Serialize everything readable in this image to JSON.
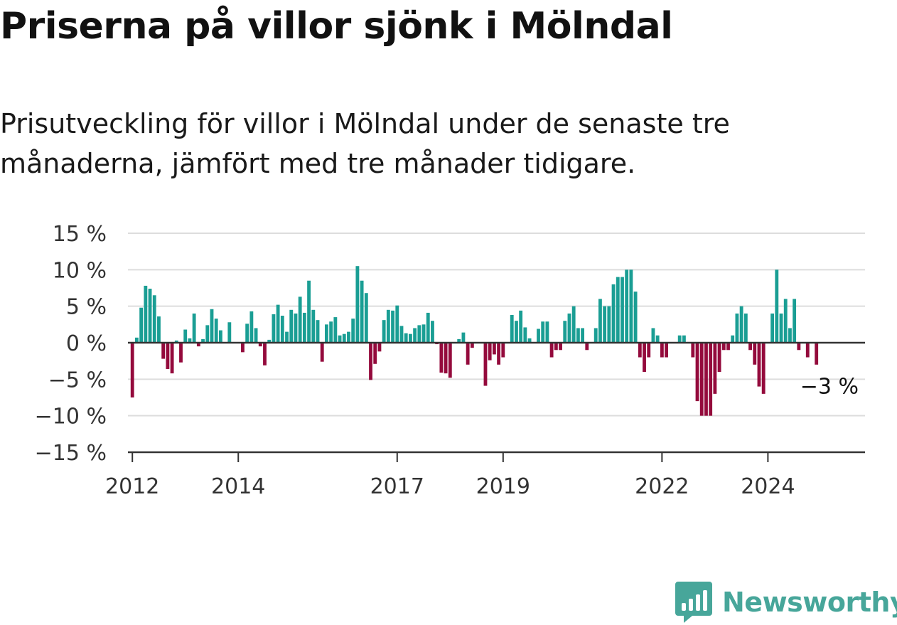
{
  "header": {
    "title": "Priserna på villor sjönk i Mölndal",
    "subtitle": "Prisutveckling för villor i Mölndal under de senaste tre månaderna, jämfört med tre månader tidigare."
  },
  "colors": {
    "positive": "#1a9e94",
    "negative": "#940a3c",
    "grid": "#dddddd",
    "axis": "#333333",
    "brand": "#47a69a"
  },
  "brand": {
    "name": "Newsworthy"
  },
  "chart_data": {
    "type": "bar",
    "ylim": [
      -15,
      15
    ],
    "yticks": [
      {
        "value": 15,
        "label": "15 %"
      },
      {
        "value": 10,
        "label": "10 %"
      },
      {
        "value": 5,
        "label": "5 %"
      },
      {
        "value": 0,
        "label": "0 %"
      },
      {
        "value": -5,
        "label": "−5 %"
      },
      {
        "value": -10,
        "label": "−10 %"
      },
      {
        "value": -15,
        "label": "−15 %"
      }
    ],
    "x_start": "2011-12",
    "x_end": "2025-11",
    "xticks": [
      {
        "date": "2012-01",
        "label": "2012"
      },
      {
        "date": "2014-01",
        "label": "2014"
      },
      {
        "date": "2017-01",
        "label": "2017"
      },
      {
        "date": "2019-01",
        "label": "2019"
      },
      {
        "date": "2022-01",
        "label": "2022"
      },
      {
        "date": "2024-01",
        "label": "2024"
      }
    ],
    "annotation": {
      "label": "−3 %",
      "date": "2024-12",
      "value": -3
    },
    "series": [
      {
        "values": [
          [
            "2012-01",
            -7.5
          ],
          [
            "2012-02",
            0.7
          ],
          [
            "2012-03",
            4.8
          ],
          [
            "2012-04",
            7.8
          ],
          [
            "2012-05",
            7.4
          ],
          [
            "2012-06",
            6.5
          ],
          [
            "2012-07",
            3.6
          ],
          [
            "2012-08",
            -2.2
          ],
          [
            "2012-09",
            -3.6
          ],
          [
            "2012-10",
            -4.2
          ],
          [
            "2012-11",
            0.3
          ],
          [
            "2012-12",
            -2.7
          ],
          [
            "2013-01",
            1.8
          ],
          [
            "2013-02",
            0.6
          ],
          [
            "2013-03",
            4.0
          ],
          [
            "2013-04",
            -0.5
          ],
          [
            "2013-05",
            0.5
          ],
          [
            "2013-06",
            2.4
          ],
          [
            "2013-07",
            4.6
          ],
          [
            "2013-08",
            3.3
          ],
          [
            "2013-09",
            1.7
          ],
          [
            "2013-10",
            0
          ],
          [
            "2013-11",
            2.8
          ],
          [
            "2013-12",
            0
          ],
          [
            "2014-01",
            0
          ],
          [
            "2014-02",
            -1.3
          ],
          [
            "2014-03",
            2.6
          ],
          [
            "2014-04",
            4.3
          ],
          [
            "2014-05",
            2.0
          ],
          [
            "2014-06",
            -0.5
          ],
          [
            "2014-07",
            -3.1
          ],
          [
            "2014-08",
            0.4
          ],
          [
            "2014-09",
            3.9
          ],
          [
            "2014-10",
            5.2
          ],
          [
            "2014-11",
            3.7
          ],
          [
            "2014-12",
            1.5
          ],
          [
            "2015-01",
            4.5
          ],
          [
            "2015-02",
            4.0
          ],
          [
            "2015-03",
            6.3
          ],
          [
            "2015-04",
            4.1
          ],
          [
            "2015-05",
            8.5
          ],
          [
            "2015-06",
            4.5
          ],
          [
            "2015-07",
            3.1
          ],
          [
            "2015-08",
            -2.6
          ],
          [
            "2015-09",
            2.5
          ],
          [
            "2015-10",
            2.9
          ],
          [
            "2015-11",
            3.5
          ],
          [
            "2015-12",
            1.0
          ],
          [
            "2016-01",
            1.2
          ],
          [
            "2016-02",
            1.5
          ],
          [
            "2016-03",
            3.3
          ],
          [
            "2016-04",
            10.5
          ],
          [
            "2016-05",
            8.5
          ],
          [
            "2016-06",
            6.8
          ],
          [
            "2016-07",
            -5.1
          ],
          [
            "2016-08",
            -2.9
          ],
          [
            "2016-09",
            -1.2
          ],
          [
            "2016-10",
            3.1
          ],
          [
            "2016-11",
            4.5
          ],
          [
            "2016-12",
            4.4
          ],
          [
            "2017-01",
            5.1
          ],
          [
            "2017-02",
            2.3
          ],
          [
            "2017-03",
            1.3
          ],
          [
            "2017-04",
            1.2
          ],
          [
            "2017-05",
            2.0
          ],
          [
            "2017-06",
            2.4
          ],
          [
            "2017-07",
            2.5
          ],
          [
            "2017-08",
            4.1
          ],
          [
            "2017-09",
            3.0
          ],
          [
            "2017-10",
            -0.2
          ],
          [
            "2017-11",
            -4.1
          ],
          [
            "2017-12",
            -4.2
          ],
          [
            "2018-01",
            -4.8
          ],
          [
            "2018-02",
            0
          ],
          [
            "2018-03",
            0.5
          ],
          [
            "2018-04",
            1.4
          ],
          [
            "2018-05",
            -3.0
          ],
          [
            "2018-06",
            -0.7
          ],
          [
            "2018-07",
            0
          ],
          [
            "2018-08",
            0
          ],
          [
            "2018-09",
            -5.9
          ],
          [
            "2018-10",
            -2.4
          ],
          [
            "2018-11",
            -1.6
          ],
          [
            "2018-12",
            -3.0
          ],
          [
            "2019-01",
            -2.0
          ],
          [
            "2019-02",
            0
          ],
          [
            "2019-03",
            3.8
          ],
          [
            "2019-04",
            3.0
          ],
          [
            "2019-05",
            4.4
          ],
          [
            "2019-06",
            2.1
          ],
          [
            "2019-07",
            0.6
          ],
          [
            "2019-08",
            0
          ],
          [
            "2019-09",
            1.9
          ],
          [
            "2019-10",
            2.9
          ],
          [
            "2019-11",
            2.9
          ],
          [
            "2019-12",
            -2.0
          ],
          [
            "2020-01",
            -1.0
          ],
          [
            "2020-02",
            -1.0
          ],
          [
            "2020-03",
            3.0
          ],
          [
            "2020-04",
            4.0
          ],
          [
            "2020-05",
            5.0
          ],
          [
            "2020-06",
            2.0
          ],
          [
            "2020-07",
            2.0
          ],
          [
            "2020-08",
            -1.0
          ],
          [
            "2020-09",
            0
          ],
          [
            "2020-10",
            2.0
          ],
          [
            "2020-11",
            6.0
          ],
          [
            "2020-12",
            5.0
          ],
          [
            "2021-01",
            5.0
          ],
          [
            "2021-02",
            8.0
          ],
          [
            "2021-03",
            9.0
          ],
          [
            "2021-04",
            9.0
          ],
          [
            "2021-05",
            10.0
          ],
          [
            "2021-06",
            10.0
          ],
          [
            "2021-07",
            7.0
          ],
          [
            "2021-08",
            -2.0
          ],
          [
            "2021-09",
            -4.0
          ],
          [
            "2021-10",
            -2.0
          ],
          [
            "2021-11",
            2.0
          ],
          [
            "2021-12",
            1.0
          ],
          [
            "2022-01",
            -2.0
          ],
          [
            "2022-02",
            -2.0
          ],
          [
            "2022-03",
            0
          ],
          [
            "2022-04",
            0
          ],
          [
            "2022-05",
            1.0
          ],
          [
            "2022-06",
            1.0
          ],
          [
            "2022-07",
            0
          ],
          [
            "2022-08",
            -2.0
          ],
          [
            "2022-09",
            -8.0
          ],
          [
            "2022-10",
            -10.0
          ],
          [
            "2022-11",
            -10.0
          ],
          [
            "2022-12",
            -10.0
          ],
          [
            "2023-01",
            -7.0
          ],
          [
            "2023-02",
            -4.0
          ],
          [
            "2023-03",
            -1.0
          ],
          [
            "2023-04",
            -1.0
          ],
          [
            "2023-05",
            1.0
          ],
          [
            "2023-06",
            4.0
          ],
          [
            "2023-07",
            5.0
          ],
          [
            "2023-08",
            4.0
          ],
          [
            "2023-09",
            -1.0
          ],
          [
            "2023-10",
            -3.0
          ],
          [
            "2023-11",
            -6.0
          ],
          [
            "2023-12",
            -7.0
          ],
          [
            "2024-01",
            0
          ],
          [
            "2024-02",
            4.0
          ],
          [
            "2024-03",
            10.0
          ],
          [
            "2024-04",
            4.0
          ],
          [
            "2024-05",
            6.0
          ],
          [
            "2024-06",
            2.0
          ],
          [
            "2024-07",
            6.0
          ],
          [
            "2024-08",
            -1.0
          ],
          [
            "2024-09",
            0
          ],
          [
            "2024-10",
            -2.0
          ],
          [
            "2024-11",
            0
          ],
          [
            "2024-12",
            -3.0
          ]
        ]
      }
    ]
  }
}
